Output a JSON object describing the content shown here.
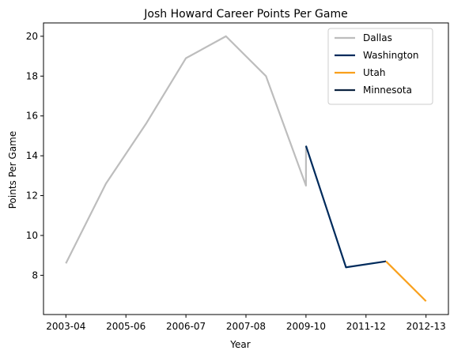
{
  "chart_data": {
    "type": "line",
    "title": "Josh Howard Career Points Per Game",
    "xlabel": "Year",
    "ylabel": "Points Per Game",
    "x_tick_labels": [
      "2003-04",
      "2005-06",
      "2006-07",
      "2007-08",
      "2009-10",
      "2011-12",
      "2012-13"
    ],
    "xlim": [
      -0.56,
      9.56
    ],
    "ylim": [
      6.03,
      20.67
    ],
    "y_ticks": [
      8,
      10,
      12,
      14,
      16,
      18,
      20
    ],
    "grid": false,
    "legend_position": "top-right",
    "series": [
      {
        "name": "Dallas",
        "color": "#bdbdbd",
        "points": [
          [
            0,
            8.6
          ],
          [
            1,
            12.6
          ],
          [
            2,
            15.6
          ],
          [
            3,
            18.9
          ],
          [
            4,
            20.0
          ],
          [
            5,
            18.0
          ],
          [
            6,
            12.5
          ],
          [
            6,
            14.5
          ]
        ]
      },
      {
        "name": "Washington",
        "color": "#002b5c",
        "points": [
          [
            6,
            14.5
          ],
          [
            7,
            8.4
          ],
          [
            8,
            8.7
          ]
        ]
      },
      {
        "name": "Utah",
        "color": "#f9a01b",
        "points": [
          [
            8,
            8.7
          ],
          [
            9,
            6.7
          ]
        ]
      },
      {
        "name": "Minnesota",
        "color": "#0c2340",
        "points": []
      }
    ]
  }
}
